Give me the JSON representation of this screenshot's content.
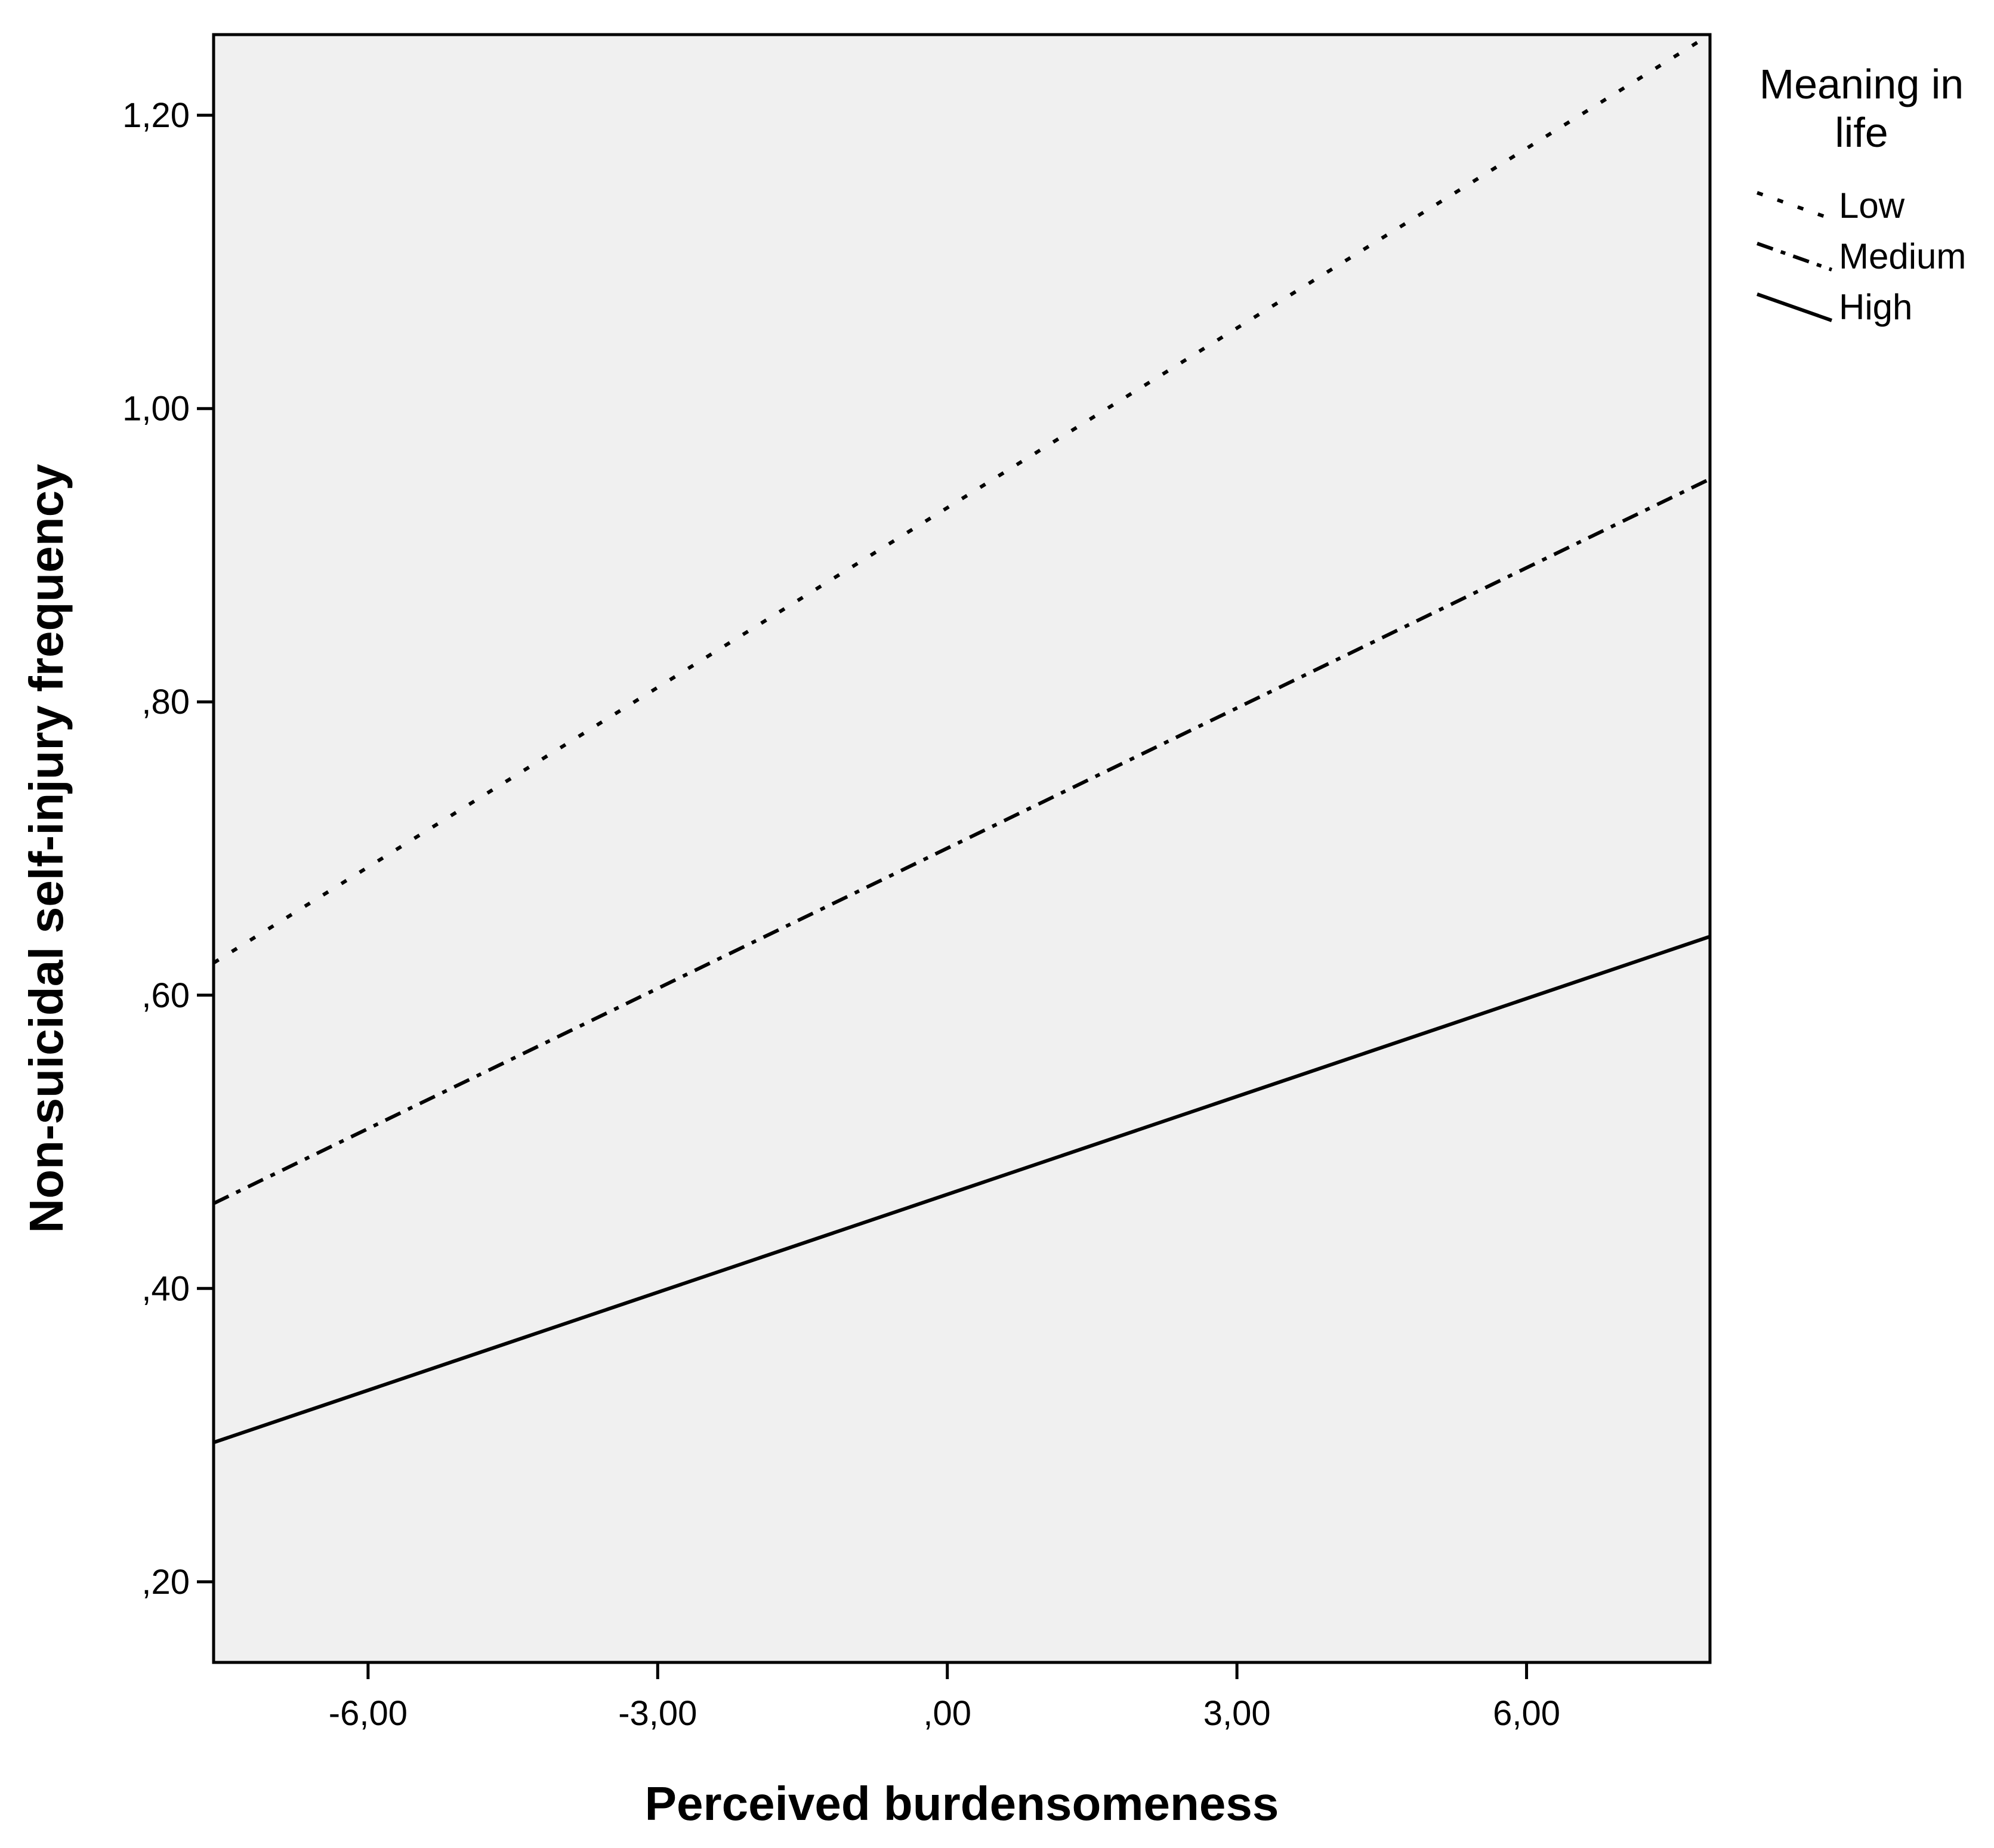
{
  "chart_data": {
    "type": "line",
    "title": "",
    "xlabel": "Perceived burdensomeness",
    "ylabel": "Non-suicidal self-injury frequency",
    "xlim": [
      -7.6,
      7.9
    ],
    "ylim": [
      0.145,
      1.255
    ],
    "xticks": [
      -6,
      -3,
      0,
      3,
      6
    ],
    "xtick_labels": [
      "-6,00",
      "-3,00",
      ",00",
      "3,00",
      "6,00"
    ],
    "yticks": [
      0.2,
      0.4,
      0.6,
      0.8,
      1.0,
      1.2
    ],
    "ytick_labels": [
      ",20",
      ",40",
      ",60",
      ",80",
      "1,00",
      "1,20"
    ],
    "grid": false,
    "legend": {
      "title": "Meaning in life",
      "placement": "top-right, outside plot"
    },
    "series": [
      {
        "name": "Low",
        "style": "dotted",
        "x": [
          -7.6,
          7.9
        ],
        "y": [
          0.622,
          1.255
        ]
      },
      {
        "name": "Medium",
        "style": "dash-dot",
        "x": [
          -7.6,
          7.9
        ],
        "y": [
          0.458,
          0.952
        ]
      },
      {
        "name": "High",
        "style": "solid",
        "x": [
          -7.6,
          7.9
        ],
        "y": [
          0.295,
          0.64
        ]
      }
    ],
    "colors": {
      "plot_background": "#f0f0f0",
      "line": "#000000"
    }
  }
}
